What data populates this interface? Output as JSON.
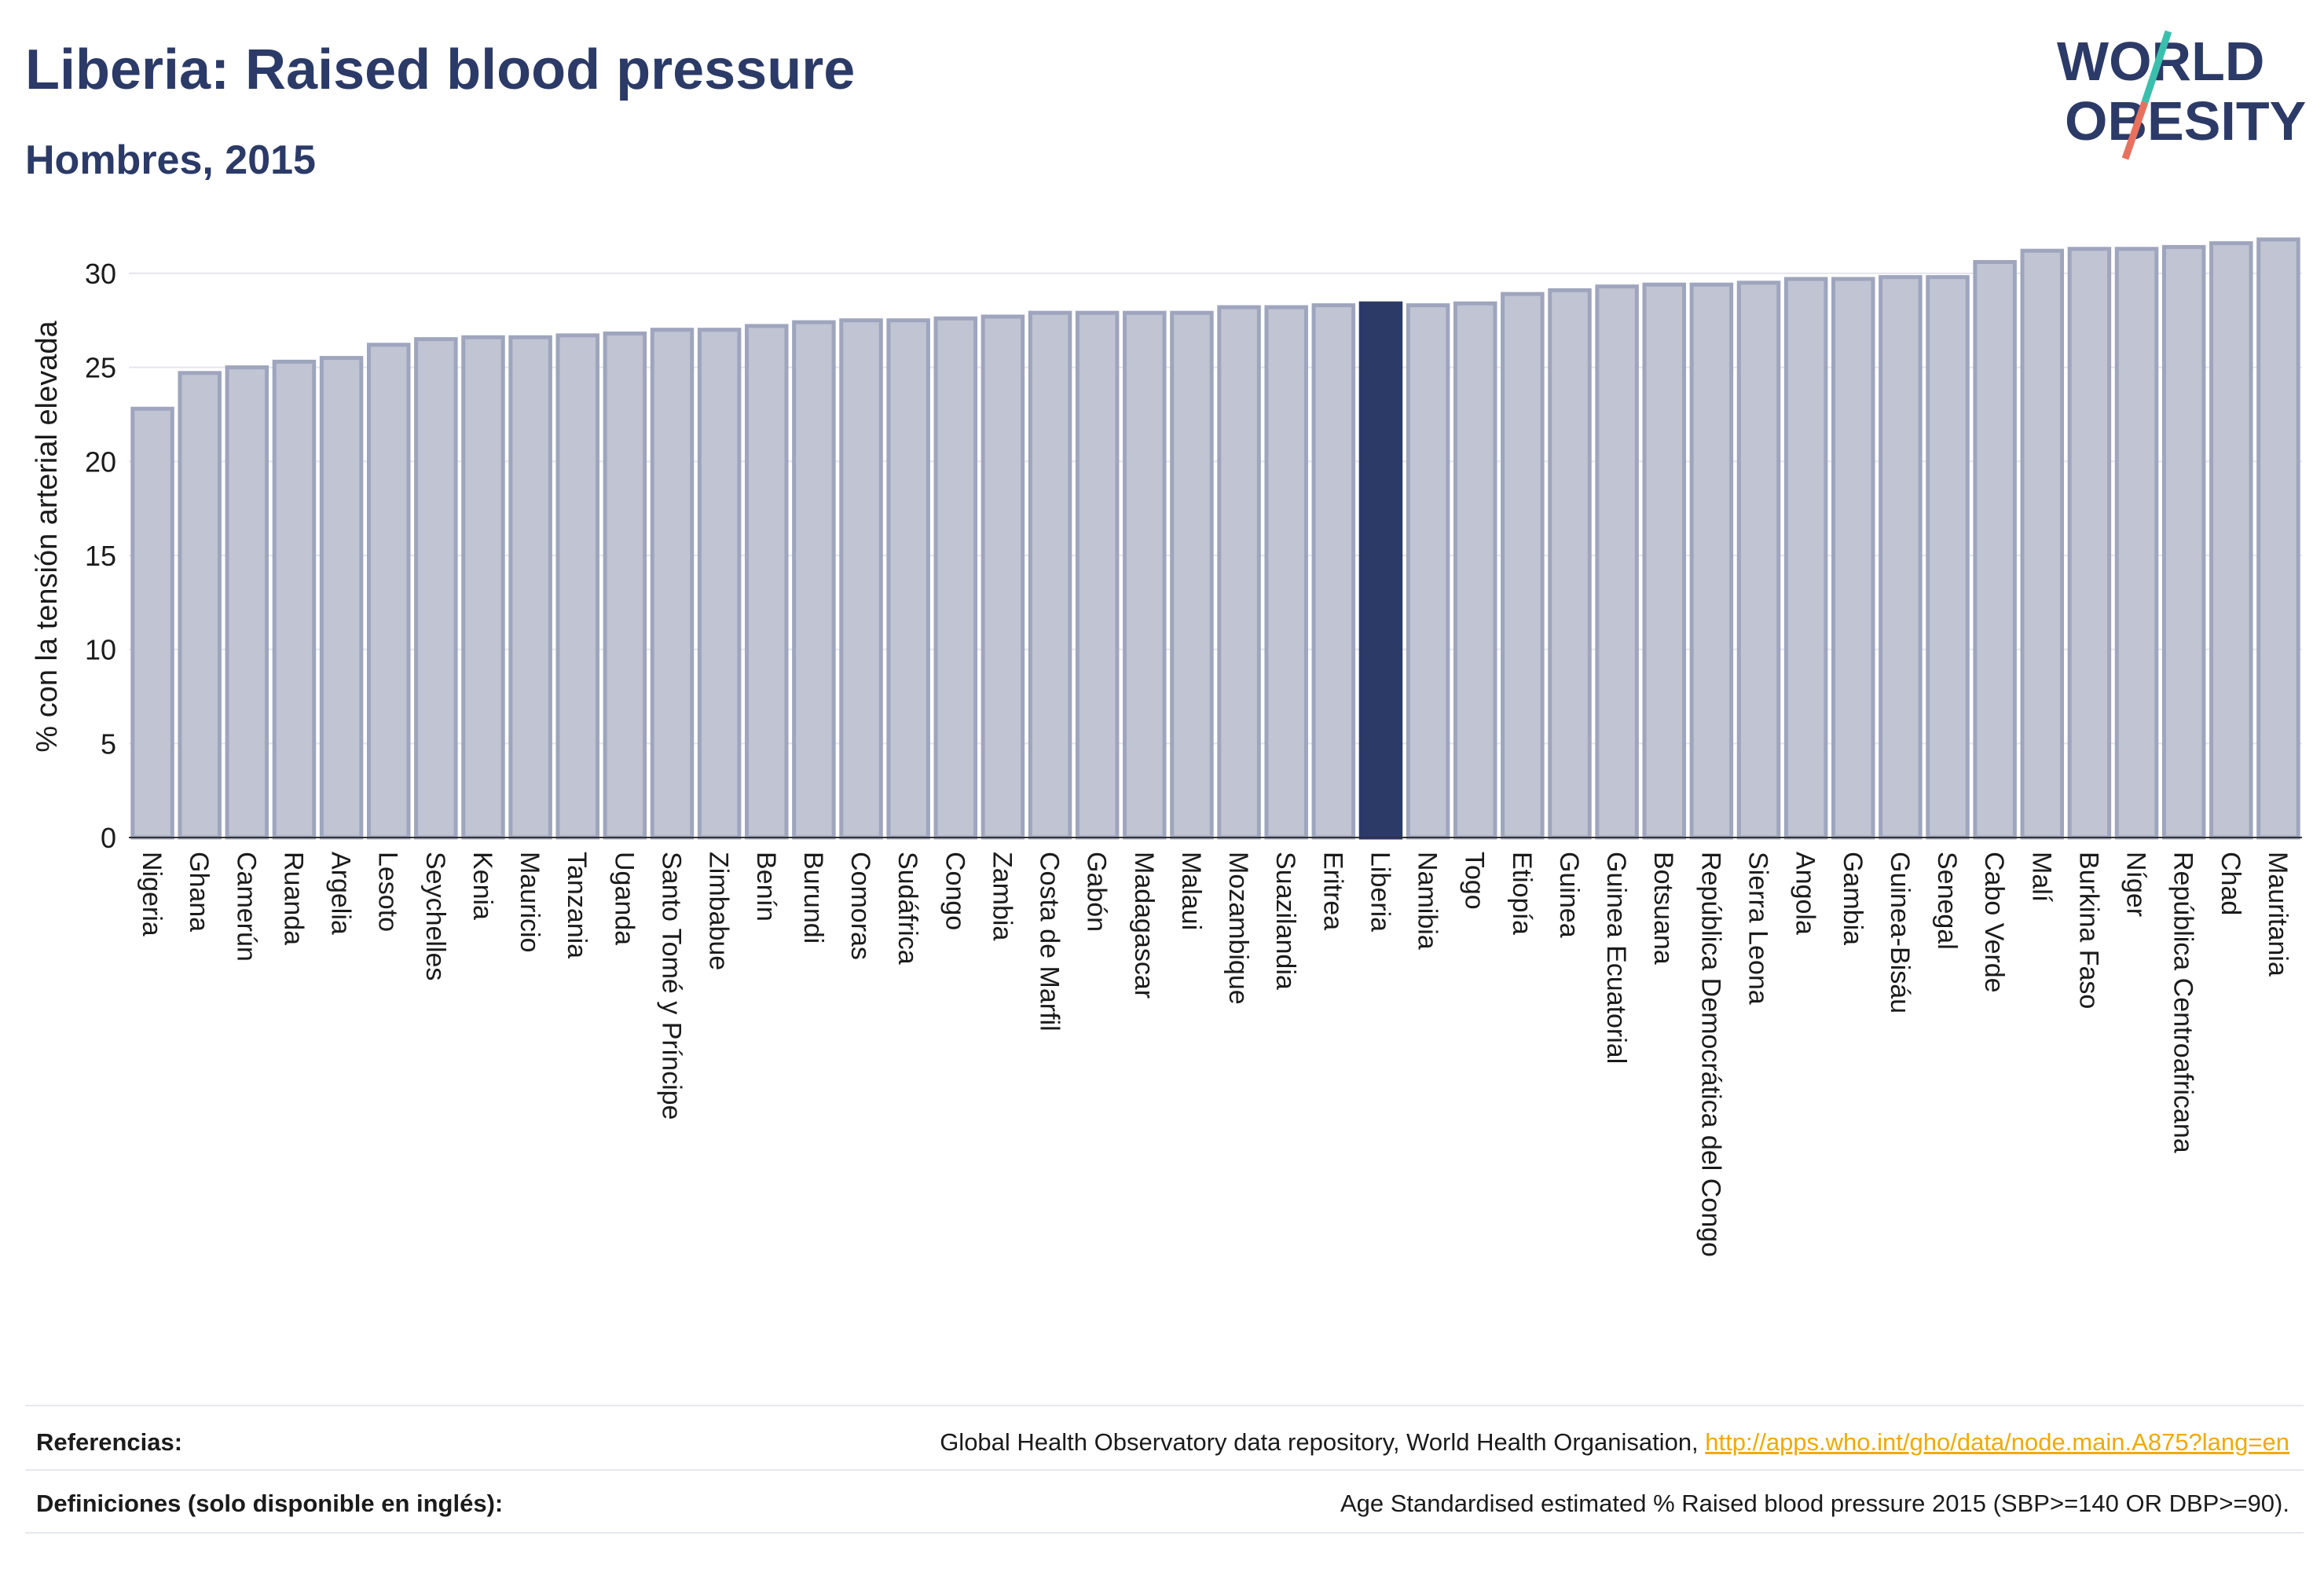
{
  "header": {
    "title": "Liberia: Raised blood pressure",
    "subtitle": "Hombres, 2015"
  },
  "logo": {
    "line1": "WORLD",
    "line2": "OBESITY",
    "colors": {
      "text": "#2b3a67",
      "slash_teal": "#3bbfad",
      "slash_red": "#e8715e"
    }
  },
  "colors": {
    "bar": "#c0c4d3",
    "bar_stroke": "#9ea5bd",
    "highlight": "#2b3a67",
    "grid": "#e4e6ec",
    "text": "#1b1b1b",
    "link": "#f2a900"
  },
  "chart_data": {
    "type": "bar",
    "title": "",
    "ylabel": "% con la tensión arterial elevada",
    "xlabel": "",
    "ylim": [
      0,
      32
    ],
    "yticks": [
      0,
      5,
      10,
      15,
      20,
      25,
      30
    ],
    "highlight": "Liberia",
    "grid": true,
    "categories": [
      "Nigeria",
      "Ghana",
      "Camerún",
      "Ruanda",
      "Argelia",
      "Lesoto",
      "Seychelles",
      "Kenia",
      "Mauricio",
      "Tanzania",
      "Uganda",
      "Santo Tomé y Príncipe",
      "Zimbabue",
      "Benín",
      "Burundi",
      "Comoras",
      "Sudáfrica",
      "Congo",
      "Zambia",
      "Costa de Marfil",
      "Gabón",
      "Madagascar",
      "Malaui",
      "Mozambique",
      "Suazilandia",
      "Eritrea",
      "Liberia",
      "Namibia",
      "Togo",
      "Etiopía",
      "Guinea",
      "Guinea Ecuatorial",
      "Botsuana",
      "República Democrática del Congo",
      "Sierra Leona",
      "Angola",
      "Gambia",
      "Guinea-Bisáu",
      "Senegal",
      "Cabo Verde",
      "Malí",
      "Burkina Faso",
      "Níger",
      "República Centroafricana",
      "Chad",
      "Mauritania"
    ],
    "values": [
      22.8,
      24.7,
      25.0,
      25.3,
      25.5,
      26.2,
      26.5,
      26.6,
      26.6,
      26.7,
      26.8,
      27.0,
      27.0,
      27.2,
      27.4,
      27.5,
      27.5,
      27.6,
      27.7,
      27.9,
      27.9,
      27.9,
      27.9,
      28.2,
      28.2,
      28.3,
      28.4,
      28.3,
      28.4,
      28.9,
      29.1,
      29.3,
      29.4,
      29.4,
      29.5,
      29.7,
      29.7,
      29.8,
      29.8,
      30.6,
      31.2,
      31.3,
      31.3,
      31.4,
      31.6,
      31.8
    ]
  },
  "footer": {
    "references_label": "Referencias:",
    "references_text": "Global Health Observatory data repository, World Health Organisation, ",
    "references_link": "http://apps.who.int/gho/data/node.main.A875?lang=en",
    "definitions_label": "Definiciones (solo disponible en inglés):",
    "definitions_text": "Age Standardised estimated % Raised blood pressure 2015 (SBP>=140 OR DBP>=90)."
  }
}
